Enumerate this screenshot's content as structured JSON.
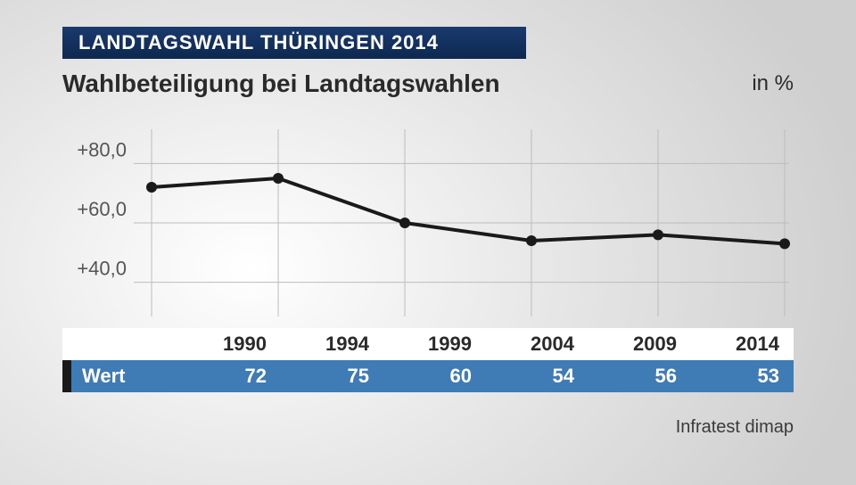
{
  "header": {
    "banner": "LANDTAGSWAHL THÜRINGEN 2014",
    "subtitle": "Wahlbeteiligung bei Landtagswahlen",
    "unit": "in %"
  },
  "chart": {
    "type": "line",
    "years": [
      "1990",
      "1994",
      "1999",
      "2004",
      "2009",
      "2014"
    ],
    "values": [
      72,
      75,
      60,
      54,
      56,
      53
    ],
    "ylim": [
      30,
      90
    ],
    "yticks": [
      40,
      60,
      80
    ],
    "ytick_labels": [
      "+40,0",
      "+60,0",
      "+80,0"
    ],
    "line_color": "#1a1a1a",
    "line_width": 4,
    "marker_radius": 6,
    "marker_color": "#1a1a1a",
    "grid_color": "#bcbcbc",
    "background_color": "transparent",
    "ylabel_fontsize": 22
  },
  "table": {
    "series_label": "Wert",
    "year_row_bg": "#ffffff",
    "value_row_bg": "#3f7bb5",
    "value_row_marker": "#1a1a1a",
    "value_text_color": "#ffffff"
  },
  "source": "Infratest dimap"
}
